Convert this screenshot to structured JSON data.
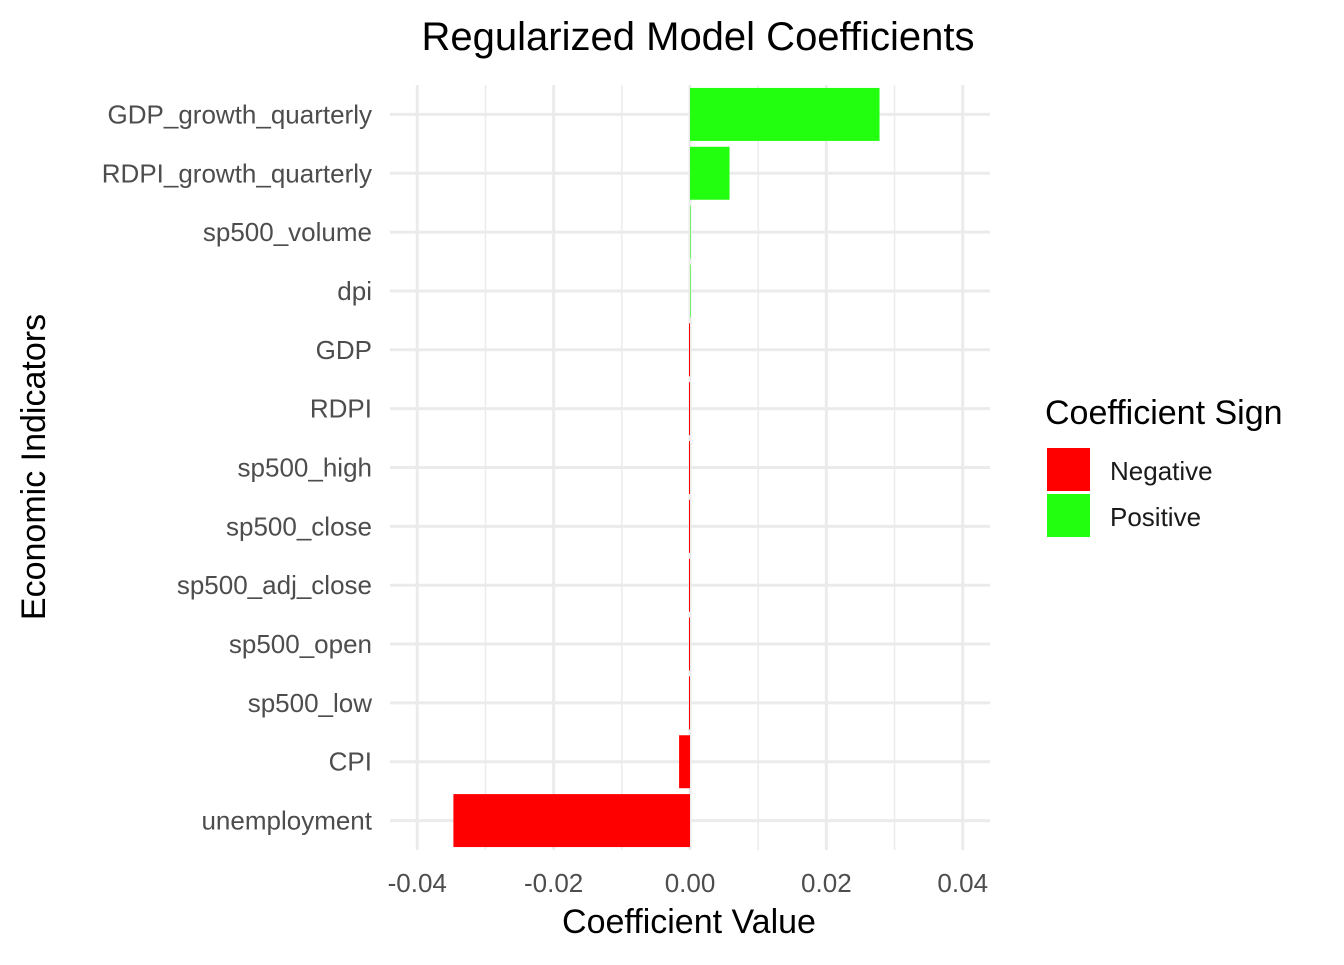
{
  "chart_data": {
    "type": "bar",
    "orientation": "horizontal",
    "title": "Regularized Model Coefficients",
    "xlabel": "Coefficient Value",
    "ylabel": "Economic Indicators",
    "xlim": [
      -0.044,
      0.044
    ],
    "xticks": [
      -0.04,
      -0.02,
      0.0,
      0.02,
      0.04
    ],
    "xtick_labels": [
      "-0.04",
      "-0.02",
      "0.00",
      "0.02",
      "0.04"
    ],
    "grid": true,
    "legend": {
      "title": "Coefficient Sign",
      "placement": "right",
      "entries": [
        {
          "label": "Negative",
          "color": "#ff0000"
        },
        {
          "label": "Positive",
          "color": "#22ff0f"
        }
      ]
    },
    "categories": [
      "GDP_growth_quarterly",
      "RDPI_growth_quarterly",
      "sp500_volume",
      "dpi",
      "GDP",
      "RDPI",
      "sp500_high",
      "sp500_close",
      "sp500_adj_close",
      "sp500_open",
      "sp500_low",
      "CPI",
      "unemployment"
    ],
    "values": [
      0.0278,
      0.0058,
      1e-05,
      1e-05,
      -2e-05,
      -2e-05,
      -2e-05,
      -2e-05,
      -2e-05,
      -2e-05,
      -2e-05,
      -0.0016,
      -0.0347
    ],
    "signs": [
      "Positive",
      "Positive",
      "Positive",
      "Positive",
      "Negative",
      "Negative",
      "Negative",
      "Negative",
      "Negative",
      "Negative",
      "Negative",
      "Negative",
      "Negative"
    ]
  },
  "colors": {
    "negative": "#ff0000",
    "positive": "#22ff0f",
    "grid": "#ebebeb"
  }
}
